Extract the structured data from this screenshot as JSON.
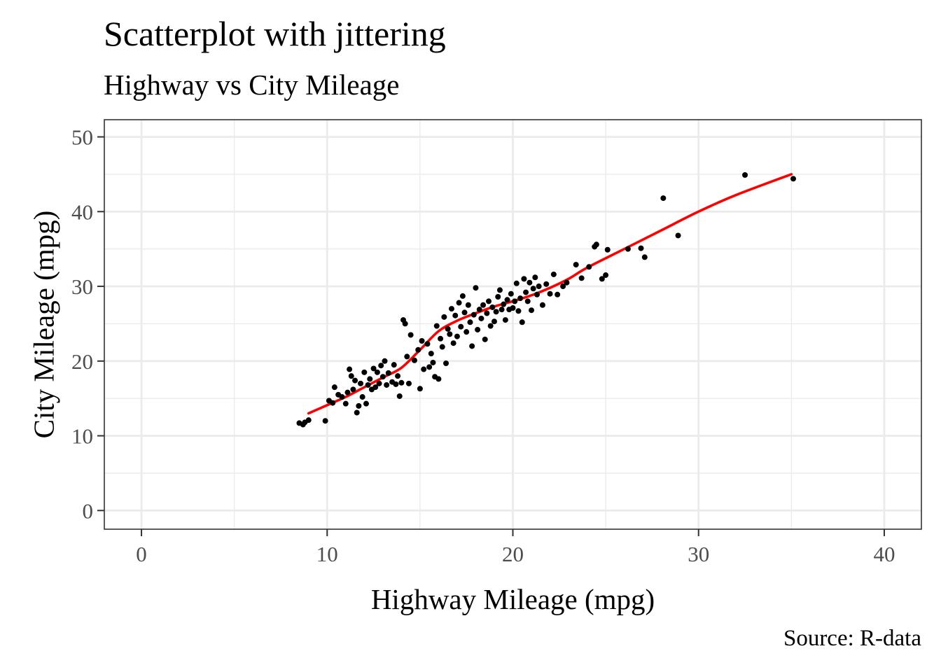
{
  "chart_data": {
    "type": "scatter",
    "title": "Scatterplot with jittering",
    "subtitle": "Highway vs City Mileage",
    "xlabel": "Highway Mileage (mpg)",
    "ylabel": "City Mileage (mpg)",
    "caption": "Source: R-data",
    "xlim": [
      -2,
      42
    ],
    "ylim": [
      -2.5,
      52.3
    ],
    "x_ticks": [
      0,
      10,
      20,
      30,
      40
    ],
    "y_ticks": [
      0,
      10,
      20,
      30,
      40,
      50
    ],
    "grid": true,
    "theme": "bw",
    "point_color": "#000000",
    "trend_color": "#ff0000",
    "series": [
      {
        "values": [
          [
            8.5,
            11.7
          ],
          [
            8.7,
            11.5
          ],
          [
            8.8,
            11.8
          ],
          [
            9.0,
            12.1
          ],
          [
            9.9,
            12.0
          ],
          [
            10.1,
            14.7
          ],
          [
            10.3,
            14.4
          ],
          [
            10.4,
            16.5
          ],
          [
            10.6,
            15.5
          ],
          [
            10.8,
            15.2
          ],
          [
            11.0,
            14.3
          ],
          [
            11.1,
            15.8
          ],
          [
            11.2,
            18.9
          ],
          [
            11.3,
            18.0
          ],
          [
            11.4,
            16.2
          ],
          [
            11.5,
            17.4
          ],
          [
            11.6,
            13.1
          ],
          [
            11.7,
            14.0
          ],
          [
            11.8,
            17.0
          ],
          [
            11.9,
            15.2
          ],
          [
            12.0,
            18.5
          ],
          [
            12.1,
            14.3
          ],
          [
            12.2,
            16.8
          ],
          [
            12.3,
            17.6
          ],
          [
            12.4,
            16.2
          ],
          [
            12.5,
            19.0
          ],
          [
            12.6,
            16.5
          ],
          [
            12.7,
            18.5
          ],
          [
            12.8,
            17.0
          ],
          [
            12.9,
            19.4
          ],
          [
            13.0,
            17.9
          ],
          [
            13.1,
            20.0
          ],
          [
            13.2,
            16.8
          ],
          [
            13.3,
            18.4
          ],
          [
            13.5,
            17.2
          ],
          [
            13.6,
            19.5
          ],
          [
            13.7,
            16.9
          ],
          [
            13.8,
            18.0
          ],
          [
            13.9,
            15.3
          ],
          [
            14.0,
            17.1
          ],
          [
            14.1,
            25.5
          ],
          [
            14.2,
            25.0
          ],
          [
            14.3,
            20.6
          ],
          [
            14.4,
            17.0
          ],
          [
            14.5,
            23.5
          ],
          [
            14.7,
            20.1
          ],
          [
            14.9,
            21.5
          ],
          [
            15.0,
            16.3
          ],
          [
            15.1,
            22.7
          ],
          [
            15.2,
            18.9
          ],
          [
            15.4,
            22.3
          ],
          [
            15.5,
            19.2
          ],
          [
            15.6,
            21.0
          ],
          [
            15.7,
            19.8
          ],
          [
            15.8,
            17.9
          ],
          [
            15.9,
            24.7
          ],
          [
            16.0,
            17.6
          ],
          [
            16.1,
            23.0
          ],
          [
            16.2,
            21.9
          ],
          [
            16.3,
            25.9
          ],
          [
            16.4,
            19.7
          ],
          [
            16.5,
            24.3
          ],
          [
            16.6,
            23.6
          ],
          [
            16.7,
            27.0
          ],
          [
            16.8,
            22.4
          ],
          [
            16.9,
            26.1
          ],
          [
            17.0,
            23.3
          ],
          [
            17.1,
            27.8
          ],
          [
            17.2,
            24.6
          ],
          [
            17.3,
            28.7
          ],
          [
            17.4,
            26.5
          ],
          [
            17.5,
            23.9
          ],
          [
            17.6,
            27.5
          ],
          [
            17.7,
            25.2
          ],
          [
            17.8,
            22.0
          ],
          [
            17.9,
            26.2
          ],
          [
            18.0,
            29.8
          ],
          [
            18.1,
            24.2
          ],
          [
            18.2,
            26.9
          ],
          [
            18.3,
            25.7
          ],
          [
            18.4,
            27.5
          ],
          [
            18.5,
            22.9
          ],
          [
            18.6,
            26.4
          ],
          [
            18.7,
            28.0
          ],
          [
            18.8,
            24.7
          ],
          [
            18.9,
            27.2
          ],
          [
            19.0,
            25.3
          ],
          [
            19.1,
            26.6
          ],
          [
            19.2,
            28.6
          ],
          [
            19.3,
            29.5
          ],
          [
            19.4,
            26.9
          ],
          [
            19.5,
            27.6
          ],
          [
            19.6,
            25.5
          ],
          [
            19.7,
            28.2
          ],
          [
            19.8,
            26.9
          ],
          [
            19.9,
            29.0
          ],
          [
            20.0,
            27.1
          ],
          [
            20.1,
            28.0
          ],
          [
            20.2,
            30.4
          ],
          [
            20.3,
            26.7
          ],
          [
            20.4,
            28.4
          ],
          [
            20.5,
            25.2
          ],
          [
            20.6,
            31.0
          ],
          [
            20.7,
            29.2
          ],
          [
            20.8,
            28.0
          ],
          [
            20.9,
            30.5
          ],
          [
            21.0,
            26.8
          ],
          [
            21.1,
            29.7
          ],
          [
            21.2,
            31.2
          ],
          [
            21.3,
            28.9
          ],
          [
            21.4,
            30.0
          ],
          [
            21.6,
            27.5
          ],
          [
            21.8,
            30.3
          ],
          [
            22.0,
            29.0
          ],
          [
            22.2,
            31.6
          ],
          [
            22.4,
            28.9
          ],
          [
            22.7,
            30.0
          ],
          [
            22.9,
            30.5
          ],
          [
            23.4,
            32.9
          ],
          [
            23.7,
            31.1
          ],
          [
            24.1,
            32.6
          ],
          [
            24.4,
            35.3
          ],
          [
            24.5,
            35.6
          ],
          [
            24.8,
            31.0
          ],
          [
            25.0,
            31.5
          ],
          [
            25.1,
            34.9
          ],
          [
            26.2,
            35.0
          ],
          [
            26.9,
            35.1
          ],
          [
            27.1,
            33.9
          ],
          [
            28.1,
            41.8
          ],
          [
            28.9,
            36.8
          ],
          [
            32.5,
            44.9
          ],
          [
            35.1,
            44.4
          ]
        ]
      }
    ],
    "trend": {
      "type": "loess",
      "points": [
        [
          9,
          13.0
        ],
        [
          10,
          14.1
        ],
        [
          11,
          15.2
        ],
        [
          12,
          16.5
        ],
        [
          13,
          17.8
        ],
        [
          14,
          19.1
        ],
        [
          15,
          21.5
        ],
        [
          16,
          24.0
        ],
        [
          17,
          25.4
        ],
        [
          18,
          26.4
        ],
        [
          19,
          27.3
        ],
        [
          20,
          28.0
        ],
        [
          21,
          28.8
        ],
        [
          22,
          29.8
        ],
        [
          23,
          31.0
        ],
        [
          24,
          32.5
        ],
        [
          26,
          35.0
        ],
        [
          28,
          37.5
        ],
        [
          30,
          40.0
        ],
        [
          32,
          42.2
        ],
        [
          35,
          45.0
        ]
      ]
    }
  }
}
